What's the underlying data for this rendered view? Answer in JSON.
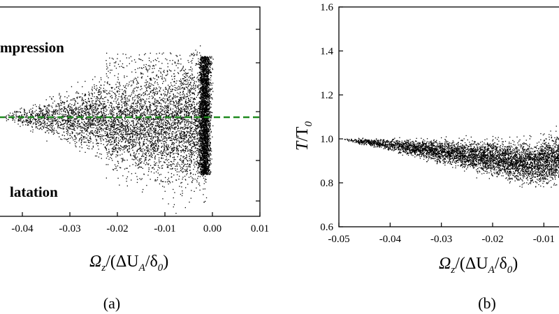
{
  "chart_data": [
    {
      "type": "scatter",
      "panel_label": "(a)",
      "xlabel": {
        "main": "Ω",
        "sub": "z",
        "tail": "/(ΔU",
        "sub2": "A",
        "tail2": "/δ",
        "sub3": "0",
        "tail3": ")"
      },
      "xlim": [
        -0.045,
        0.01
      ],
      "x_ticks": [
        -0.04,
        -0.03,
        -0.02,
        -0.01,
        0.0,
        0.01
      ],
      "x_tick_labels": [
        "-0.04",
        "-0.03",
        "-0.02",
        "-0.01",
        "0.00",
        "0.01"
      ],
      "annotations": [
        {
          "text": "mpression",
          "color": "#1a1ad6"
        },
        {
          "text": "latation",
          "color": "#e01010"
        }
      ],
      "reference_line": {
        "style": "dashed",
        "color": "#1f8a1f"
      },
      "point_color": "#000000"
    },
    {
      "type": "scatter",
      "panel_label": "(b)",
      "ylabel": {
        "main": "T",
        "tail": "/T",
        "sub": "0"
      },
      "xlabel": {
        "main": "Ω",
        "sub": "z",
        "tail": "/(ΔU",
        "sub2": "A",
        "tail2": "/δ",
        "sub3": "0",
        "tail3": ")"
      },
      "xlim": [
        -0.05,
        -0.005
      ],
      "ylim": [
        0.6,
        1.6
      ],
      "x_ticks": [
        -0.05,
        -0.04,
        -0.03,
        -0.02,
        -0.01
      ],
      "x_tick_labels": [
        "-0.05",
        "-0.04",
        "-0.03",
        "-0.02",
        "-0.01"
      ],
      "y_ticks": [
        0.6,
        0.8,
        1.0,
        1.2,
        1.4,
        1.6
      ],
      "y_tick_labels": [
        "0.6",
        "0.8",
        "1.0",
        "1.2",
        "1.4",
        "1.6"
      ],
      "point_color": "#000000"
    }
  ]
}
